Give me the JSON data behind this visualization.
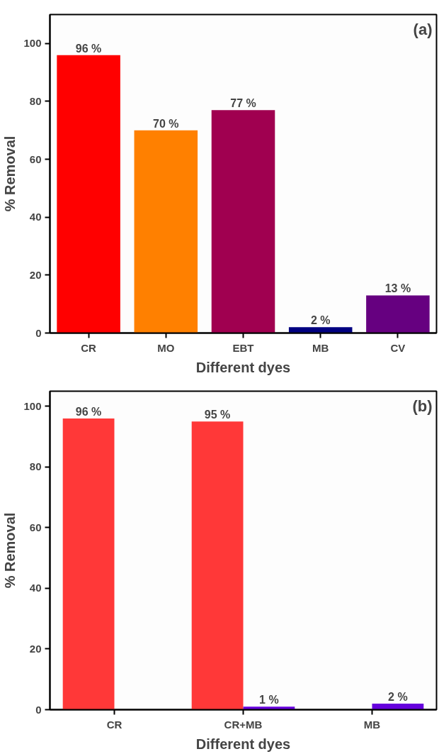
{
  "chart_data": [
    {
      "type": "bar",
      "xlabel": "Different dyes",
      "ylabel": "% Removal",
      "annotations": [
        "(a)"
      ],
      "categories": [
        "CR",
        "MO",
        "EBT",
        "MB",
        "CV"
      ],
      "series": [
        {
          "values": [
            96,
            70,
            77,
            2,
            13
          ],
          "colors": [
            "#ff0000",
            "#ff8000",
            "#a00050",
            "#000080",
            "#660080"
          ],
          "value_labels": [
            "96 %",
            "70 %",
            "77 %",
            "2 %",
            "13 %"
          ]
        }
      ],
      "ylim": [
        0,
        110
      ],
      "yticks": [
        0,
        20,
        40,
        60,
        80,
        100
      ],
      "grid": false
    },
    {
      "type": "bar",
      "xlabel": "Different dyes",
      "ylabel": "% Removal",
      "annotations": [
        "(b)"
      ],
      "categories": [
        "CR",
        "CR+MB",
        "MB"
      ],
      "series": [
        {
          "color": "#ff3838",
          "values": [
            96,
            95,
            null
          ],
          "value_labels": [
            "96 %",
            "95 %",
            null
          ]
        },
        {
          "color": "#6600dd",
          "values": [
            null,
            1,
            2
          ],
          "value_labels": [
            null,
            "1 %",
            "2 %"
          ]
        }
      ],
      "ylim": [
        0,
        105
      ],
      "yticks": [
        0,
        20,
        40,
        60,
        80,
        100
      ],
      "grid": false
    }
  ]
}
